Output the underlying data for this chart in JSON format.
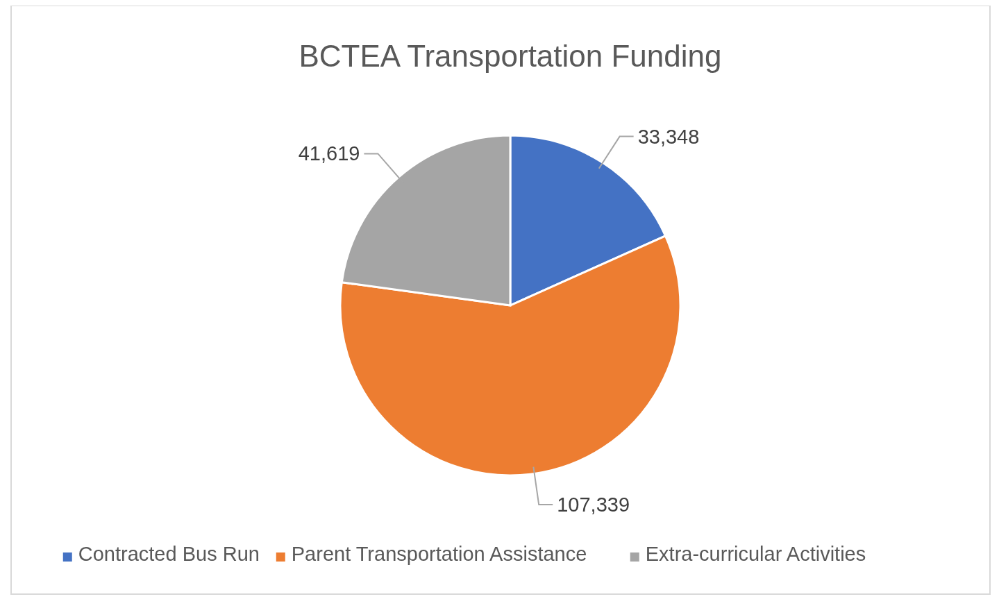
{
  "chart_data": {
    "type": "pie",
    "title": "BCTEA Transportation Funding",
    "categories": [
      "Contracted Bus Run",
      "Parent Transportation Assistance",
      "Extra-curricular Activities"
    ],
    "values": [
      33348,
      107339,
      41619
    ],
    "colors": [
      "#4472c4",
      "#ed7d31",
      "#a5a5a5"
    ],
    "value_labels": [
      "33,348",
      "107,339",
      "41,619"
    ],
    "legend": "bottom"
  }
}
